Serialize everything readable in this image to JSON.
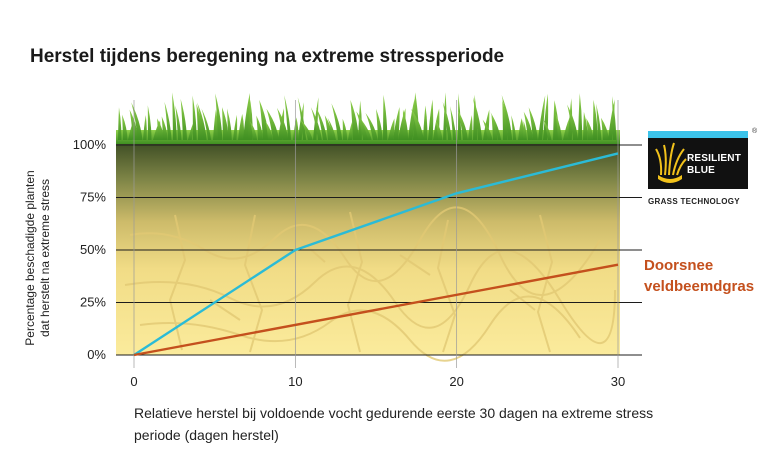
{
  "chart_data": {
    "type": "line",
    "title": "Herstel tijdens beregening na extreme stressperiode",
    "xlabel": "Relatieve herstel bij voldoende vocht gedurende eerste 30 dagen na extreme stress periode (dagen herstel)",
    "ylabel": [
      "Percentage beschadigde planten",
      "dat herstelt na extreme stress"
    ],
    "xlim": [
      0,
      30
    ],
    "ylim": [
      0,
      100
    ],
    "x_ticks": [
      "0",
      "10",
      "20",
      "30"
    ],
    "y_ticks": [
      "0%",
      "25%",
      "50%",
      "75%",
      "100%"
    ],
    "grid": "horizontal",
    "series": [
      {
        "name": "",
        "color": "#2bbbd6",
        "x": [
          0,
          10,
          20,
          30
        ],
        "y": [
          0,
          50,
          77,
          96
        ]
      },
      {
        "name": "Doorsnee veldbeemdgras",
        "color": "#c4501d",
        "x": [
          0,
          30
        ],
        "y": [
          0,
          43
        ]
      }
    ]
  },
  "legend": {
    "logo": {
      "line1": "RESILIENT",
      "line2": "BLUE",
      "registered": "®",
      "subtitle": "GRASS TECHNOLOGY",
      "accent": "#3cc3ea",
      "icon": "grass-tuft-icon"
    },
    "series2_lines": [
      "Doorsnee",
      "veldbeemdgras"
    ]
  }
}
